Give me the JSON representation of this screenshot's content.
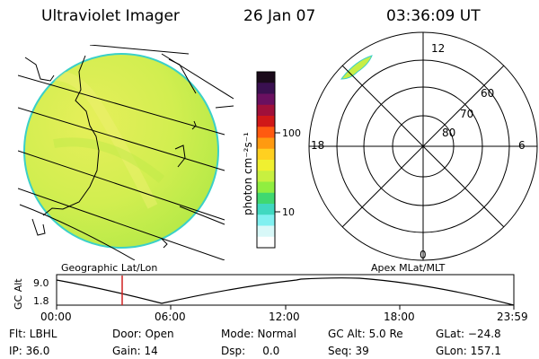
{
  "header": {
    "title": "Ultraviolet Imager",
    "date": "26 Jan 07",
    "time": "03:36:09 UT"
  },
  "colorbar": {
    "unit_label": "photon cm⁻²s⁻¹",
    "tick_100": "100",
    "tick_10": "10",
    "colors": [
      "#1a0a1a",
      "#3a1050",
      "#6a1060",
      "#a0103a",
      "#d01818",
      "#ff5a10",
      "#ff9a10",
      "#ffd020",
      "#f0f030",
      "#c8f040",
      "#90ee40",
      "#40d870",
      "#40d8c0",
      "#80f0f0",
      "#d8f8f8",
      "#ffffff"
    ]
  },
  "geo_map": {
    "label": "Geographic Lat/Lon",
    "fill_color": "#d2ee50",
    "edge_color": "#3ad0c8"
  },
  "polar_plot": {
    "label": "Apex MLat/MLT",
    "mlt_top": "12",
    "mlt_left": "18",
    "mlt_right": "6",
    "mlt_bottom": "0",
    "mlat_60": "60",
    "mlat_70": "70",
    "mlat_80": "80"
  },
  "altitude_plot": {
    "ylabel": "GC Alt",
    "y_top": "9.0",
    "y_bottom": "1.8",
    "x_ticks": [
      "00:00",
      "06:00",
      "12:00",
      "18:00",
      "23:59"
    ],
    "marker_color": "#d02020"
  },
  "status": {
    "filter": "Flt: LBHL",
    "door": "Door: Open",
    "mode": "Mode: Normal",
    "gc_alt": "GC Alt: 5.0 Re",
    "glat": "GLat: −24.8",
    "ip": "IP: 36.0",
    "gain": "Gain: 14",
    "dsp": "Dsp:     0.0",
    "seq": "Seq: 39",
    "glon": "GLon: 157.1"
  }
}
